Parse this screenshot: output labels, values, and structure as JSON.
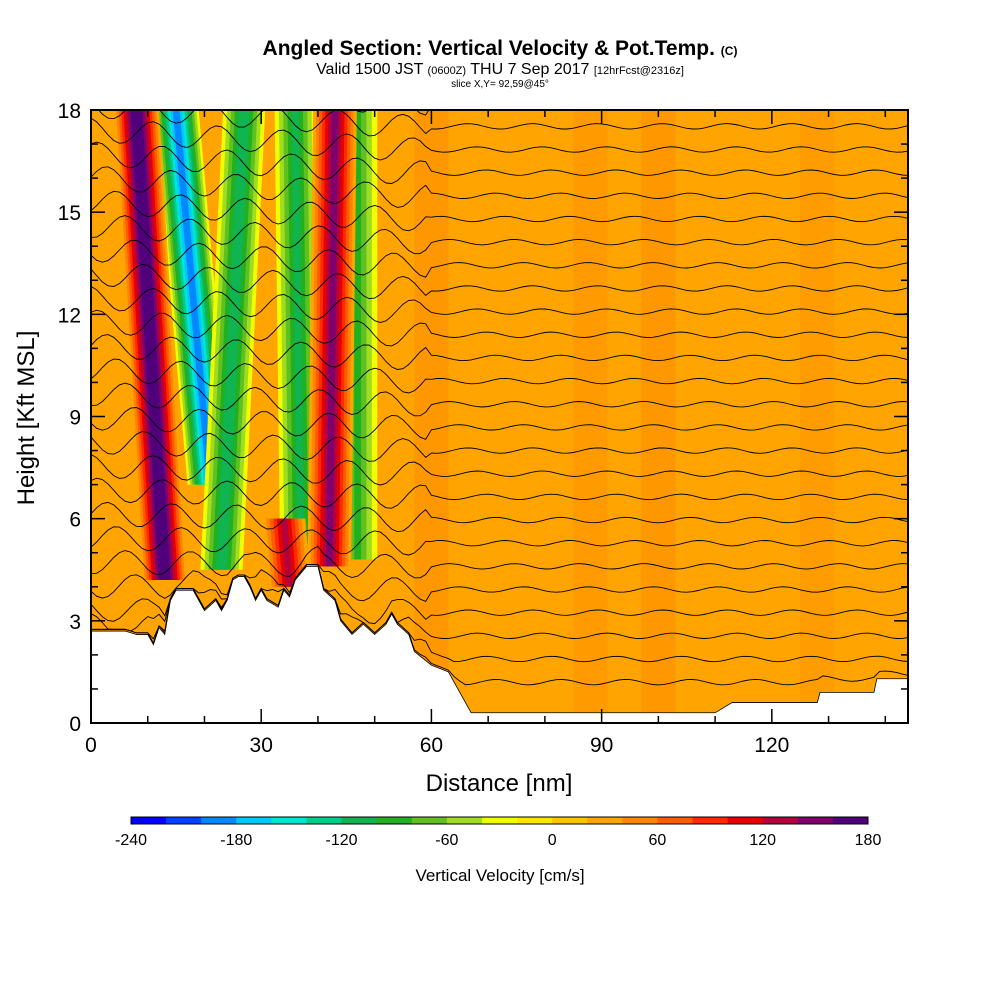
{
  "header": {
    "title": "Angled Section: Vertical Velocity & Pot.Temp.",
    "title_unit": "(C)",
    "valid_prefix": "Valid 1500 JST",
    "valid_zulu": "(0600Z)",
    "valid_date": "THU 7 Sep 2017",
    "forecast": "[12hrFcst@2316z]",
    "slice": "slice X,Y= 92,59@45°"
  },
  "chart_data": {
    "type": "heatmap",
    "xlabel": "Distance [nm]",
    "ylabel": "Height [Kft MSL]",
    "xlim": [
      0,
      144
    ],
    "ylim": [
      0,
      18
    ],
    "x_ticks": [
      0,
      30,
      60,
      90,
      120
    ],
    "y_ticks": [
      0,
      3,
      6,
      9,
      12,
      15,
      18
    ],
    "background_value_cm_s": 20,
    "updraft_columns": [
      {
        "x_bottom": 13,
        "x_top": 8,
        "z_bottom": 4.2,
        "z_top": 18,
        "w_peak": 180
      },
      {
        "x_bottom": 35,
        "x_top": 34,
        "z_bottom": 4.0,
        "z_top": 6.0,
        "w_peak": 120
      },
      {
        "x_bottom": 42,
        "x_top": 43,
        "z_bottom": 4.6,
        "z_top": 18,
        "w_peak": 140
      }
    ],
    "downdraft_columns": [
      {
        "x_bottom": 21,
        "x_top": 15,
        "z_bottom": 7,
        "z_top": 18,
        "w_peak": -180
      },
      {
        "x_bottom": 23,
        "x_top": 27,
        "z_bottom": 4.5,
        "z_top": 18,
        "w_peak": -110
      },
      {
        "x_bottom": 37,
        "x_top": 36,
        "z_bottom": 4.6,
        "z_top": 18,
        "w_peak": -100
      },
      {
        "x_bottom": 47,
        "x_top": 47,
        "z_bottom": 4.8,
        "z_top": 18,
        "w_peak": -80
      }
    ],
    "terrain": [
      [
        0,
        2.7
      ],
      [
        6,
        2.7
      ],
      [
        8,
        2.6
      ],
      [
        10,
        2.6
      ],
      [
        11,
        2.3
      ],
      [
        12,
        2.8
      ],
      [
        13,
        2.6
      ],
      [
        13.5,
        3.1
      ],
      [
        14,
        3.6
      ],
      [
        15,
        3.9
      ],
      [
        18,
        3.9
      ],
      [
        19,
        3.6
      ],
      [
        20,
        3.3
      ],
      [
        22,
        3.6
      ],
      [
        23,
        3.3
      ],
      [
        24,
        3.6
      ],
      [
        25,
        4.2
      ],
      [
        26,
        4.3
      ],
      [
        27,
        4.3
      ],
      [
        28,
        4.0
      ],
      [
        29,
        3.6
      ],
      [
        30,
        3.9
      ],
      [
        31,
        3.6
      ],
      [
        33,
        3.4
      ],
      [
        34,
        3.9
      ],
      [
        35,
        3.7
      ],
      [
        36,
        4.2
      ],
      [
        38,
        4.6
      ],
      [
        40,
        4.6
      ],
      [
        41,
        3.9
      ],
      [
        43,
        3.6
      ],
      [
        44,
        3.0
      ],
      [
        46,
        2.6
      ],
      [
        48,
        2.9
      ],
      [
        50,
        2.6
      ],
      [
        52,
        2.9
      ],
      [
        53,
        3.2
      ],
      [
        54,
        2.9
      ],
      [
        56,
        2.6
      ],
      [
        57,
        2.1
      ],
      [
        60,
        1.7
      ],
      [
        63,
        1.5
      ],
      [
        64,
        1.2
      ],
      [
        65,
        0.9
      ],
      [
        66,
        0.6
      ],
      [
        67,
        0.3
      ],
      [
        76,
        0.3
      ],
      [
        96,
        0.3
      ],
      [
        104,
        0.3
      ],
      [
        108,
        0.3
      ],
      [
        110,
        0.3
      ],
      [
        113,
        0.6
      ],
      [
        128,
        0.6
      ],
      [
        128.5,
        0.9
      ],
      [
        138,
        0.9
      ],
      [
        138.5,
        1.3
      ],
      [
        144,
        1.3
      ]
    ],
    "theta_contour_count": 26,
    "colorbar": {
      "label": "Vertical Velocity [cm/s]",
      "min": -240,
      "max": 180,
      "step": 20,
      "tick_labels": [
        "-240",
        "-180",
        "-120",
        "-60",
        "0",
        "60",
        "120",
        "180"
      ],
      "colors": [
        "#0000ff",
        "#0044ff",
        "#0088ff",
        "#00c8ff",
        "#00e6d2",
        "#00cc8c",
        "#10b450",
        "#20b020",
        "#60c020",
        "#a0dc20",
        "#f0ff00",
        "#ffe600",
        "#ffc400",
        "#ffa400",
        "#ff8400",
        "#ff5c00",
        "#ff2a00",
        "#e60000",
        "#b4003c",
        "#80006e",
        "#50007a"
      ]
    }
  }
}
